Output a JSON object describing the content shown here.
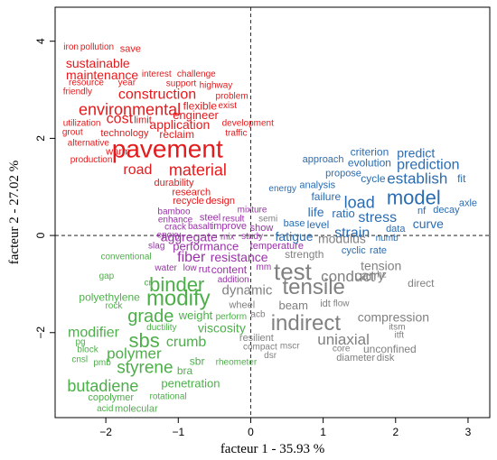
{
  "chart_data": {
    "type": "scatter",
    "title": "",
    "xlabel": "facteur 1 - 35.93 %",
    "ylabel": "facteur 2 - 27.02 %",
    "xlim": [
      -2.7,
      3.3
    ],
    "ylim": [
      -3.75,
      4.7
    ],
    "x_ticks": [
      -2,
      -1,
      0,
      1,
      2,
      3
    ],
    "y_ticks": [
      -2,
      0,
      2,
      4
    ],
    "reference_lines": {
      "x": 0,
      "y": 0,
      "style": "dashed"
    },
    "colors": {
      "red": "#e41a1c",
      "blue": "#2b6cb0",
      "purple": "#9932a8",
      "gray": "#808080",
      "green": "#4daf4a"
    },
    "words": [
      {
        "text": "iron",
        "x": -2.48,
        "y": 3.87,
        "size": 10,
        "color": "red"
      },
      {
        "text": "pollution",
        "x": -2.12,
        "y": 3.87,
        "size": 10,
        "color": "red"
      },
      {
        "text": "save",
        "x": -1.66,
        "y": 3.84,
        "size": 11,
        "color": "red"
      },
      {
        "text": "sustainable",
        "x": -2.11,
        "y": 3.55,
        "size": 14,
        "color": "red"
      },
      {
        "text": "maintenance",
        "x": -2.05,
        "y": 3.31,
        "size": 14,
        "color": "red"
      },
      {
        "text": "interest",
        "x": -1.3,
        "y": 3.32,
        "size": 10,
        "color": "red"
      },
      {
        "text": "challenge",
        "x": -0.75,
        "y": 3.32,
        "size": 10,
        "color": "red"
      },
      {
        "text": "resource",
        "x": -2.27,
        "y": 3.14,
        "size": 10,
        "color": "red"
      },
      {
        "text": "year",
        "x": -1.71,
        "y": 3.14,
        "size": 10,
        "color": "red"
      },
      {
        "text": "support",
        "x": -0.96,
        "y": 3.12,
        "size": 10,
        "color": "red"
      },
      {
        "text": "highway",
        "x": -0.48,
        "y": 3.08,
        "size": 10,
        "color": "red"
      },
      {
        "text": "friendly",
        "x": -2.39,
        "y": 2.95,
        "size": 10,
        "color": "red"
      },
      {
        "text": "construction",
        "x": -1.29,
        "y": 2.9,
        "size": 16,
        "color": "red"
      },
      {
        "text": "problem",
        "x": -0.26,
        "y": 2.86,
        "size": 10,
        "color": "red"
      },
      {
        "text": "flexible",
        "x": -0.7,
        "y": 2.67,
        "size": 12,
        "color": "red"
      },
      {
        "text": "exist",
        "x": -0.32,
        "y": 2.67,
        "size": 10,
        "color": "red"
      },
      {
        "text": "environmental",
        "x": -1.67,
        "y": 2.59,
        "size": 18,
        "color": "red"
      },
      {
        "text": "engineer",
        "x": -0.76,
        "y": 2.48,
        "size": 13,
        "color": "red"
      },
      {
        "text": "cost",
        "x": -1.81,
        "y": 2.4,
        "size": 16,
        "color": "red"
      },
      {
        "text": "limit",
        "x": -1.49,
        "y": 2.37,
        "size": 11,
        "color": "red"
      },
      {
        "text": "application",
        "x": -0.98,
        "y": 2.29,
        "size": 14,
        "color": "red"
      },
      {
        "text": "utilization",
        "x": -2.33,
        "y": 2.3,
        "size": 10,
        "color": "red"
      },
      {
        "text": "development",
        "x": -0.04,
        "y": 2.3,
        "size": 10,
        "color": "red"
      },
      {
        "text": "grout",
        "x": -2.46,
        "y": 2.12,
        "size": 10,
        "color": "red"
      },
      {
        "text": "technology",
        "x": -1.74,
        "y": 2.1,
        "size": 11,
        "color": "red"
      },
      {
        "text": "reclaim",
        "x": -1.02,
        "y": 2.08,
        "size": 12,
        "color": "red"
      },
      {
        "text": "traffic",
        "x": -0.2,
        "y": 2.1,
        "size": 10,
        "color": "red"
      },
      {
        "text": "alternative",
        "x": -2.24,
        "y": 1.9,
        "size": 10,
        "color": "red"
      },
      {
        "text": "warm",
        "x": -1.83,
        "y": 1.72,
        "size": 11,
        "color": "red"
      },
      {
        "text": "pavement",
        "x": -1.15,
        "y": 1.78,
        "size": 28,
        "color": "red"
      },
      {
        "text": "production",
        "x": -2.2,
        "y": 1.55,
        "size": 10,
        "color": "red"
      },
      {
        "text": "road",
        "x": -1.56,
        "y": 1.35,
        "size": 16,
        "color": "red"
      },
      {
        "text": "material",
        "x": -0.73,
        "y": 1.35,
        "size": 18,
        "color": "red"
      },
      {
        "text": "durability",
        "x": -1.06,
        "y": 1.08,
        "size": 11,
        "color": "red"
      },
      {
        "text": "research",
        "x": -0.82,
        "y": 0.88,
        "size": 11,
        "color": "red"
      },
      {
        "text": "recycle",
        "x": -0.86,
        "y": 0.71,
        "size": 11,
        "color": "red"
      },
      {
        "text": "design",
        "x": -0.42,
        "y": 0.71,
        "size": 11,
        "color": "red"
      },
      {
        "text": "criterion",
        "x": 1.64,
        "y": 1.72,
        "size": 12,
        "color": "blue"
      },
      {
        "text": "predict",
        "x": 2.28,
        "y": 1.7,
        "size": 14,
        "color": "blue"
      },
      {
        "text": "approach",
        "x": 1.0,
        "y": 1.56,
        "size": 11,
        "color": "blue"
      },
      {
        "text": "evolution",
        "x": 1.64,
        "y": 1.5,
        "size": 12,
        "color": "blue"
      },
      {
        "text": "prediction",
        "x": 2.45,
        "y": 1.45,
        "size": 16,
        "color": "blue"
      },
      {
        "text": "propose",
        "x": 1.28,
        "y": 1.27,
        "size": 11,
        "color": "blue"
      },
      {
        "text": "cycle",
        "x": 1.69,
        "y": 1.17,
        "size": 12,
        "color": "blue"
      },
      {
        "text": "establish",
        "x": 2.3,
        "y": 1.17,
        "size": 17,
        "color": "blue"
      },
      {
        "text": "fit",
        "x": 2.91,
        "y": 1.17,
        "size": 12,
        "color": "blue"
      },
      {
        "text": "energy",
        "x": 0.44,
        "y": 0.96,
        "size": 10,
        "color": "blue"
      },
      {
        "text": "analysis",
        "x": 0.92,
        "y": 1.03,
        "size": 11,
        "color": "blue"
      },
      {
        "text": "model",
        "x": 2.25,
        "y": 0.78,
        "size": 22,
        "color": "blue"
      },
      {
        "text": "failure",
        "x": 1.04,
        "y": 0.8,
        "size": 12,
        "color": "blue"
      },
      {
        "text": "load",
        "x": 1.5,
        "y": 0.68,
        "size": 18,
        "color": "blue"
      },
      {
        "text": "axle",
        "x": 3.0,
        "y": 0.66,
        "size": 11,
        "color": "blue"
      },
      {
        "text": "life",
        "x": 0.9,
        "y": 0.48,
        "size": 14,
        "color": "blue"
      },
      {
        "text": "ratio",
        "x": 1.28,
        "y": 0.46,
        "size": 13,
        "color": "blue"
      },
      {
        "text": "nf",
        "x": 2.36,
        "y": 0.5,
        "size": 11,
        "color": "blue"
      },
      {
        "text": "decay",
        "x": 2.7,
        "y": 0.52,
        "size": 11,
        "color": "blue"
      },
      {
        "text": "stress",
        "x": 1.75,
        "y": 0.36,
        "size": 16,
        "color": "blue"
      },
      {
        "text": "base",
        "x": 0.6,
        "y": 0.24,
        "size": 11,
        "color": "blue"
      },
      {
        "text": "level",
        "x": 0.93,
        "y": 0.22,
        "size": 12,
        "color": "blue"
      },
      {
        "text": "curve",
        "x": 2.45,
        "y": 0.24,
        "size": 14,
        "color": "blue"
      },
      {
        "text": "strain",
        "x": 1.4,
        "y": 0.05,
        "size": 16,
        "color": "blue"
      },
      {
        "text": "data",
        "x": 2.0,
        "y": 0.13,
        "size": 11,
        "color": "blue"
      },
      {
        "text": "fatigue",
        "x": 0.6,
        "y": -0.02,
        "size": 14,
        "color": "blue"
      },
      {
        "text": "numb",
        "x": 1.88,
        "y": -0.06,
        "size": 10,
        "color": "blue"
      },
      {
        "text": "cyclic",
        "x": 1.42,
        "y": -0.31,
        "size": 11,
        "color": "blue"
      },
      {
        "text": "rate",
        "x": 1.76,
        "y": -0.31,
        "size": 11,
        "color": "blue"
      },
      {
        "text": "bamboo",
        "x": -1.06,
        "y": 0.48,
        "size": 10,
        "color": "purple"
      },
      {
        "text": "mixture",
        "x": 0.02,
        "y": 0.52,
        "size": 10,
        "color": "purple"
      },
      {
        "text": "steel",
        "x": -0.56,
        "y": 0.36,
        "size": 11,
        "color": "purple"
      },
      {
        "text": "result",
        "x": -0.24,
        "y": 0.34,
        "size": 10,
        "color": "purple"
      },
      {
        "text": "enhance",
        "x": -1.04,
        "y": 0.32,
        "size": 10,
        "color": "purple"
      },
      {
        "text": "crack",
        "x": -1.04,
        "y": 0.17,
        "size": 10,
        "color": "purple"
      },
      {
        "text": "basalt",
        "x": -0.7,
        "y": 0.18,
        "size": 10,
        "color": "purple"
      },
      {
        "text": "improve",
        "x": -0.3,
        "y": 0.19,
        "size": 11,
        "color": "purple"
      },
      {
        "text": "show",
        "x": 0.15,
        "y": 0.15,
        "size": 11,
        "color": "purple"
      },
      {
        "text": "epoxy",
        "x": -1.13,
        "y": 0.0,
        "size": 10,
        "color": "purple"
      },
      {
        "text": "aggregate",
        "x": -0.85,
        "y": -0.03,
        "size": 14,
        "color": "purple"
      },
      {
        "text": "mix",
        "x": -0.32,
        "y": -0.04,
        "size": 10,
        "color": "purple"
      },
      {
        "text": "study",
        "x": 0.02,
        "y": -0.03,
        "size": 10,
        "color": "purple"
      },
      {
        "text": "slag",
        "x": -1.3,
        "y": -0.22,
        "size": 10,
        "color": "purple"
      },
      {
        "text": "performance",
        "x": -0.62,
        "y": -0.22,
        "size": 13,
        "color": "purple"
      },
      {
        "text": "temperature",
        "x": 0.36,
        "y": -0.22,
        "size": 11,
        "color": "purple"
      },
      {
        "text": "fiber",
        "x": -0.82,
        "y": -0.45,
        "size": 16,
        "color": "purple"
      },
      {
        "text": "resistance",
        "x": -0.16,
        "y": -0.44,
        "size": 14,
        "color": "purple"
      },
      {
        "text": "water",
        "x": -1.17,
        "y": -0.68,
        "size": 10,
        "color": "purple"
      },
      {
        "text": "low",
        "x": -0.84,
        "y": -0.68,
        "size": 10,
        "color": "purple"
      },
      {
        "text": "rut",
        "x": -0.64,
        "y": -0.7,
        "size": 11,
        "color": "purple"
      },
      {
        "text": "content",
        "x": -0.3,
        "y": -0.7,
        "size": 12,
        "color": "purple"
      },
      {
        "text": "mm",
        "x": 0.18,
        "y": -0.66,
        "size": 10,
        "color": "purple"
      },
      {
        "text": "addition",
        "x": -0.24,
        "y": -0.92,
        "size": 10,
        "color": "purple"
      },
      {
        "text": "semi",
        "x": 0.24,
        "y": 0.34,
        "size": 10,
        "color": "gray"
      },
      {
        "text": "strength",
        "x": 0.74,
        "y": -0.39,
        "size": 12,
        "color": "gray"
      },
      {
        "text": "modulus",
        "x": 1.26,
        "y": -0.06,
        "size": 14,
        "color": "gray"
      },
      {
        "text": "test",
        "x": 0.58,
        "y": -0.74,
        "size": 26,
        "color": "gray"
      },
      {
        "text": "tensile",
        "x": 0.87,
        "y": -1.07,
        "size": 24,
        "color": "gray"
      },
      {
        "text": "conduct",
        "x": 1.34,
        "y": -0.84,
        "size": 17,
        "color": "gray"
      },
      {
        "text": "tension",
        "x": 1.8,
        "y": -0.62,
        "size": 14,
        "color": "gray"
      },
      {
        "text": "carry",
        "x": 1.64,
        "y": -0.83,
        "size": 15,
        "color": "gray"
      },
      {
        "text": "hz",
        "x": 1.81,
        "y": -0.82,
        "size": 10,
        "color": "gray"
      },
      {
        "text": "direct",
        "x": 2.35,
        "y": -0.98,
        "size": 12,
        "color": "gray"
      },
      {
        "text": "dynamic",
        "x": -0.05,
        "y": -1.13,
        "size": 15,
        "color": "gray"
      },
      {
        "text": "wheel",
        "x": -0.12,
        "y": -1.44,
        "size": 11,
        "color": "gray"
      },
      {
        "text": "beam",
        "x": 0.59,
        "y": -1.44,
        "size": 13,
        "color": "gray"
      },
      {
        "text": "idt",
        "x": 1.03,
        "y": -1.41,
        "size": 11,
        "color": "gray"
      },
      {
        "text": "flow",
        "x": 1.25,
        "y": -1.41,
        "size": 10,
        "color": "gray"
      },
      {
        "text": "acb",
        "x": 0.1,
        "y": -1.63,
        "size": 10,
        "color": "gray"
      },
      {
        "text": "indirect",
        "x": 0.76,
        "y": -1.81,
        "size": 24,
        "color": "gray"
      },
      {
        "text": "compression",
        "x": 1.97,
        "y": -1.68,
        "size": 14,
        "color": "gray"
      },
      {
        "text": "itsm",
        "x": 2.02,
        "y": -1.89,
        "size": 10,
        "color": "gray"
      },
      {
        "text": "itft",
        "x": 2.05,
        "y": -2.06,
        "size": 10,
        "color": "gray"
      },
      {
        "text": "uniaxial",
        "x": 1.28,
        "y": -2.14,
        "size": 17,
        "color": "gray"
      },
      {
        "text": "resilient",
        "x": 0.08,
        "y": -2.12,
        "size": 11,
        "color": "gray"
      },
      {
        "text": "compact",
        "x": 0.13,
        "y": -2.3,
        "size": 10,
        "color": "gray"
      },
      {
        "text": "mscr",
        "x": 0.54,
        "y": -2.28,
        "size": 10,
        "color": "gray"
      },
      {
        "text": "core",
        "x": 1.25,
        "y": -2.34,
        "size": 10,
        "color": "gray"
      },
      {
        "text": "unconfined",
        "x": 1.92,
        "y": -2.34,
        "size": 12,
        "color": "gray"
      },
      {
        "text": "dsr",
        "x": 0.27,
        "y": -2.48,
        "size": 10,
        "color": "gray"
      },
      {
        "text": "diameter",
        "x": 1.45,
        "y": -2.52,
        "size": 11,
        "color": "gray"
      },
      {
        "text": "disk",
        "x": 1.86,
        "y": -2.52,
        "size": 11,
        "color": "gray"
      },
      {
        "text": "conventional",
        "x": -1.72,
        "y": -0.44,
        "size": 10,
        "color": "green"
      },
      {
        "text": "gap",
        "x": -1.99,
        "y": -0.84,
        "size": 10,
        "color": "green"
      },
      {
        "text": "cr",
        "x": -1.42,
        "y": -0.98,
        "size": 10,
        "color": "green"
      },
      {
        "text": "binder",
        "x": -1.02,
        "y": -1.01,
        "size": 22,
        "color": "green"
      },
      {
        "text": "polyethylene",
        "x": -1.95,
        "y": -1.27,
        "size": 12,
        "color": "green"
      },
      {
        "text": "modify",
        "x": -1.0,
        "y": -1.3,
        "size": 24,
        "color": "green"
      },
      {
        "text": "rock",
        "x": -1.89,
        "y": -1.46,
        "size": 10,
        "color": "green"
      },
      {
        "text": "grade",
        "x": -1.38,
        "y": -1.67,
        "size": 20,
        "color": "green"
      },
      {
        "text": "weight",
        "x": -0.76,
        "y": -1.64,
        "size": 13,
        "color": "green"
      },
      {
        "text": "perform",
        "x": -0.27,
        "y": -1.68,
        "size": 10,
        "color": "green"
      },
      {
        "text": "ductility",
        "x": -1.23,
        "y": -1.9,
        "size": 10,
        "color": "green"
      },
      {
        "text": "viscosity",
        "x": -0.4,
        "y": -1.9,
        "size": 14,
        "color": "green"
      },
      {
        "text": "modifier",
        "x": -2.17,
        "y": -2.0,
        "size": 16,
        "color": "green"
      },
      {
        "text": "sbs",
        "x": -1.47,
        "y": -2.16,
        "size": 22,
        "color": "green"
      },
      {
        "text": "crumb",
        "x": -0.89,
        "y": -2.2,
        "size": 16,
        "color": "green"
      },
      {
        "text": "pg",
        "x": -2.35,
        "y": -2.2,
        "size": 10,
        "color": "green"
      },
      {
        "text": "polymer",
        "x": -1.61,
        "y": -2.43,
        "size": 17,
        "color": "green"
      },
      {
        "text": "block",
        "x": -2.25,
        "y": -2.36,
        "size": 10,
        "color": "green"
      },
      {
        "text": "cnsl",
        "x": -2.36,
        "y": -2.56,
        "size": 10,
        "color": "green"
      },
      {
        "text": "pmb",
        "x": -2.05,
        "y": -2.63,
        "size": 10,
        "color": "green"
      },
      {
        "text": "styrene",
        "x": -1.46,
        "y": -2.73,
        "size": 19,
        "color": "green"
      },
      {
        "text": "sbr",
        "x": -0.74,
        "y": -2.59,
        "size": 12,
        "color": "green"
      },
      {
        "text": "rheometer",
        "x": -0.2,
        "y": -2.62,
        "size": 10,
        "color": "green"
      },
      {
        "text": "bra",
        "x": -0.91,
        "y": -2.78,
        "size": 12,
        "color": "green"
      },
      {
        "text": "butadiene",
        "x": -2.04,
        "y": -3.1,
        "size": 18,
        "color": "green"
      },
      {
        "text": "penetration",
        "x": -0.83,
        "y": -3.04,
        "size": 13,
        "color": "green"
      },
      {
        "text": "copolymer",
        "x": -1.93,
        "y": -3.34,
        "size": 11,
        "color": "green"
      },
      {
        "text": "rotational",
        "x": -1.14,
        "y": -3.32,
        "size": 10,
        "color": "green"
      },
      {
        "text": "acid",
        "x": -2.01,
        "y": -3.57,
        "size": 10,
        "color": "green"
      },
      {
        "text": "molecular",
        "x": -1.58,
        "y": -3.57,
        "size": 11,
        "color": "green"
      }
    ]
  }
}
